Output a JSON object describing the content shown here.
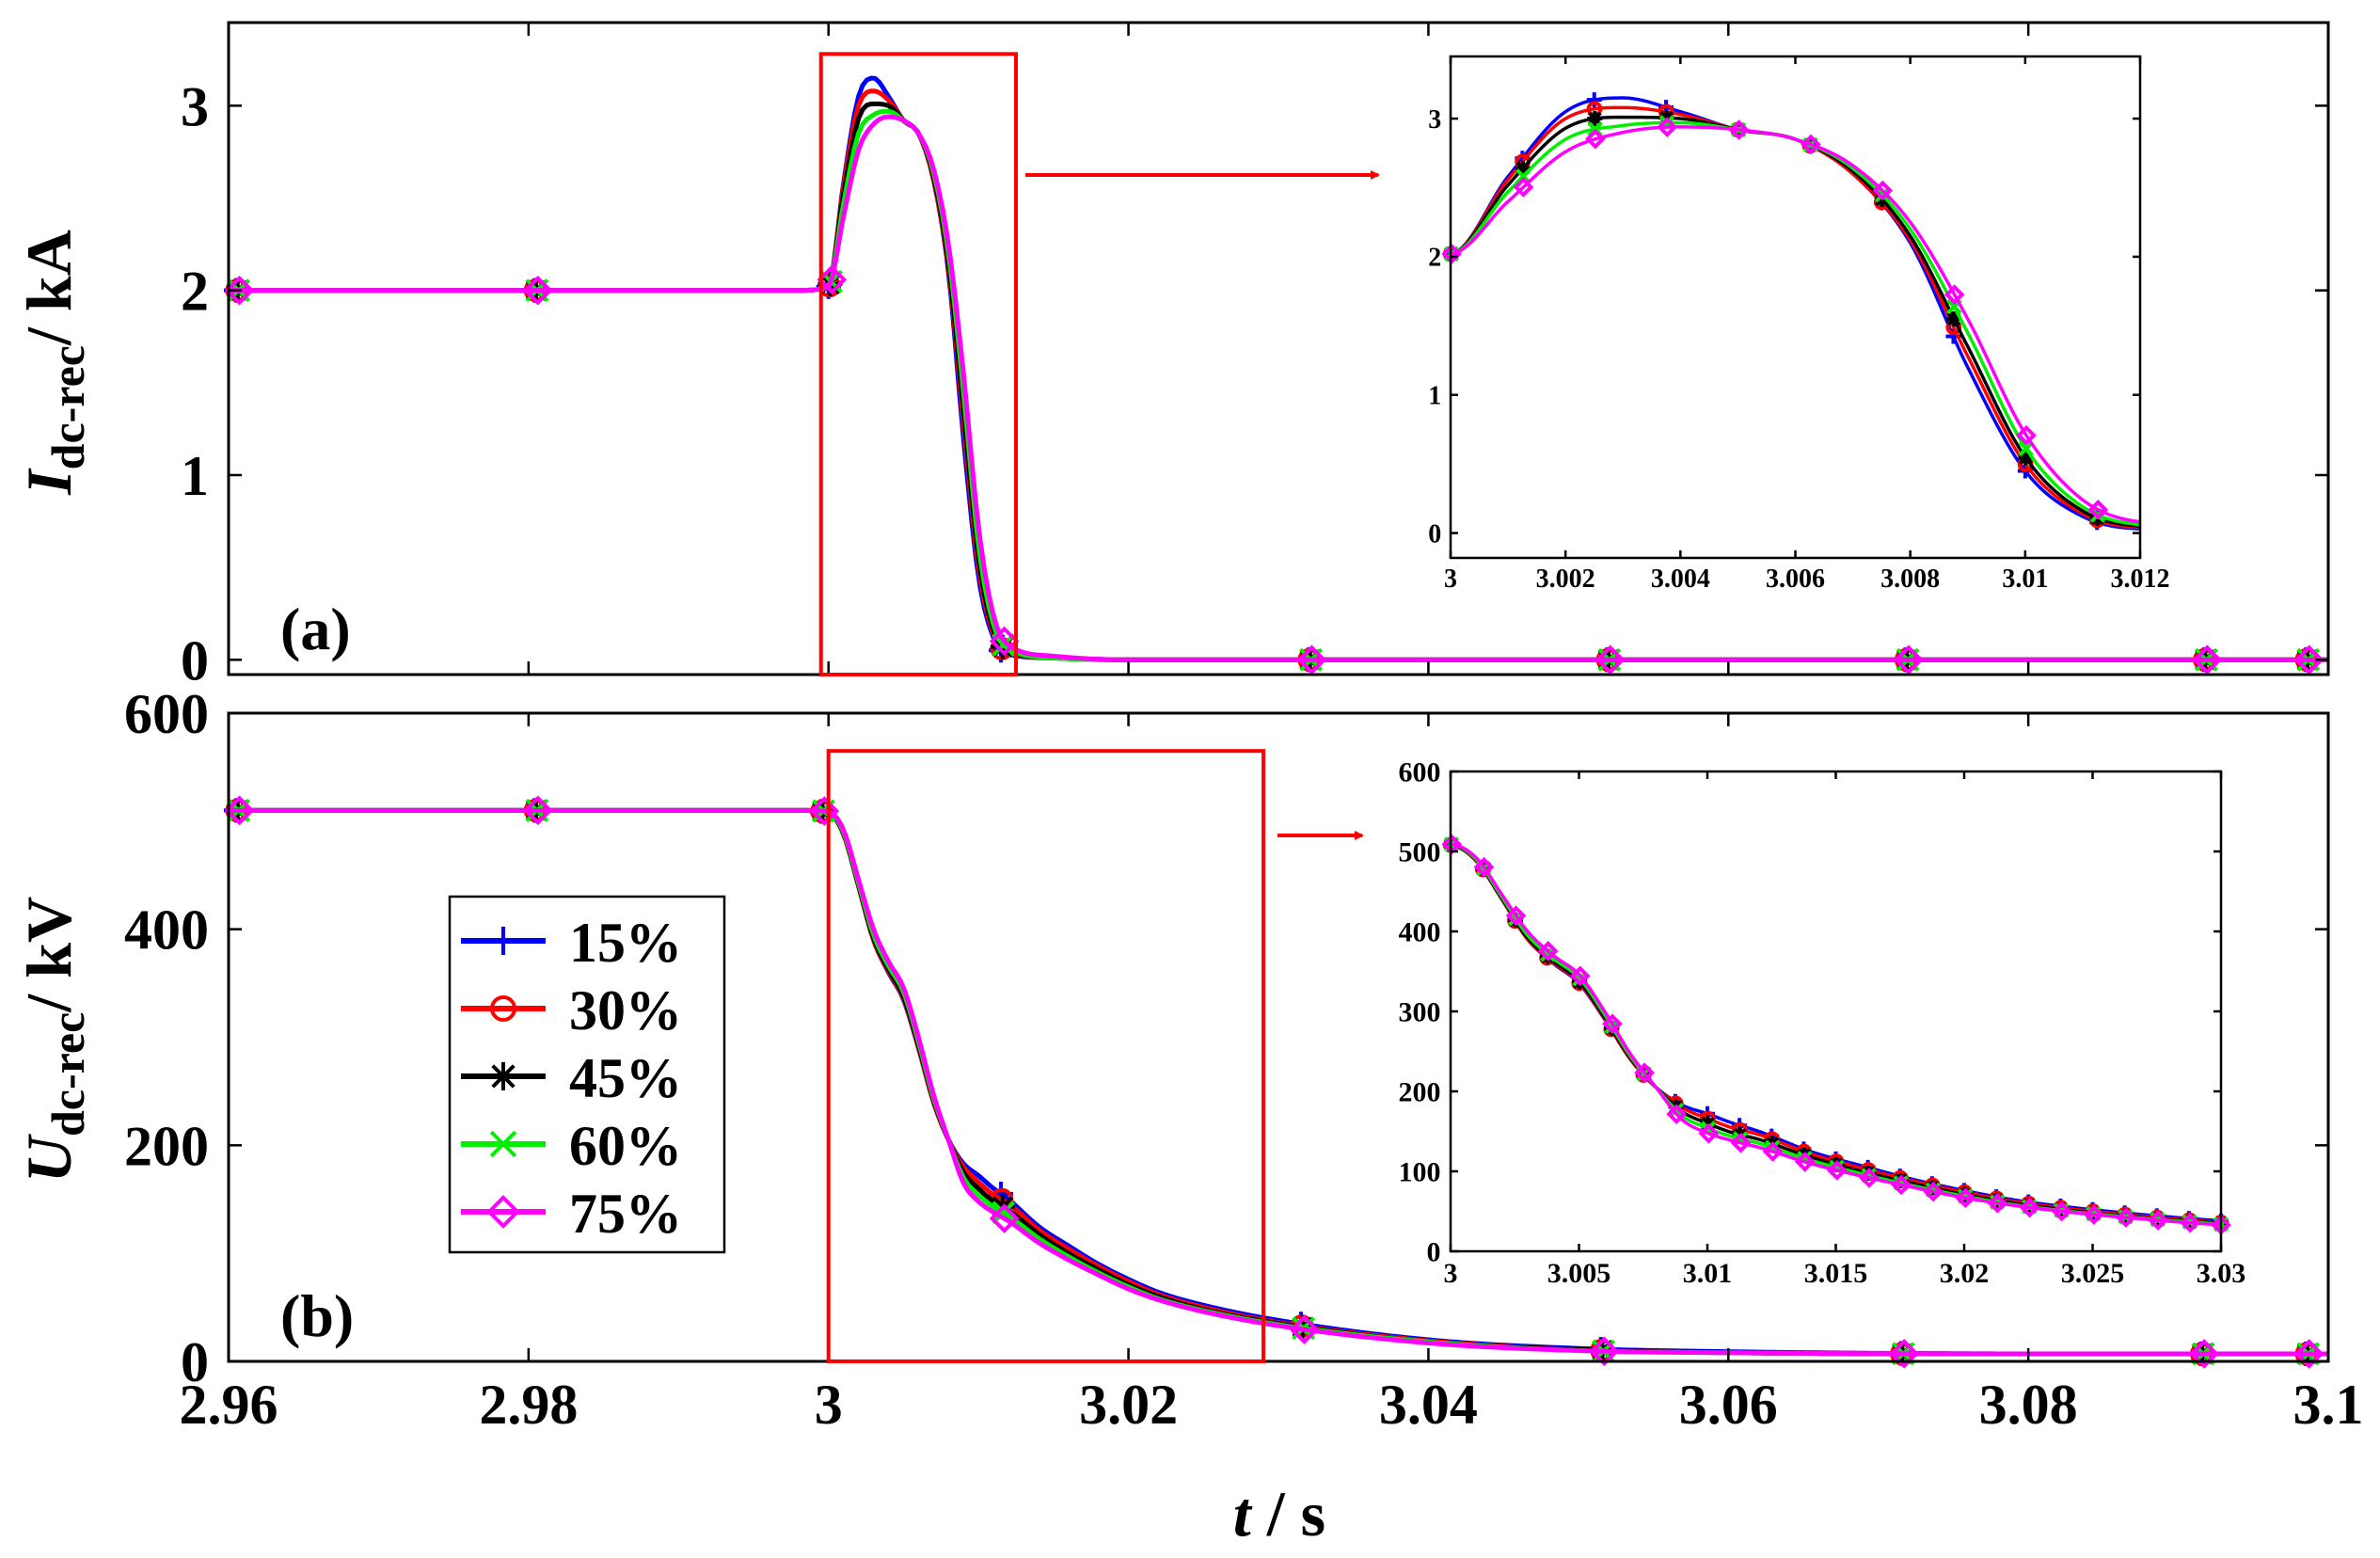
{
  "figure": {
    "xlabel_var": "t",
    "xlabel_unit": " / s"
  },
  "legend": {
    "entries": [
      {
        "label": "15%",
        "color": "#0000ff",
        "marker": "plus"
      },
      {
        "label": "30%",
        "color": "#ff0000",
        "marker": "circle"
      },
      {
        "label": "45%",
        "color": "#000000",
        "marker": "asterisk"
      },
      {
        "label": "60%",
        "color": "#00ee00",
        "marker": "cross"
      },
      {
        "label": "75%",
        "color": "#ff00ff",
        "marker": "diamond"
      }
    ]
  },
  "chart_data": [
    {
      "id": "a",
      "type": "line",
      "panel_label": "(a)",
      "ylabel_main": "I",
      "ylabel_sub": "dc-rec",
      "ylabel_unit": "/ kA",
      "xlabel": "t / s",
      "xlim": [
        2.96,
        3.1
      ],
      "ylim": [
        -0.08,
        3.45
      ],
      "xticks": [
        2.96,
        2.98,
        3,
        3.02,
        3.04,
        3.06,
        3.08,
        3.1
      ],
      "xtick_labels": [
        "2.96",
        "2.98",
        "3",
        "3.02",
        "3.04",
        "3.06",
        "3.08",
        "3.1"
      ],
      "yticks": [
        0,
        1,
        2,
        3
      ],
      "ytick_labels": [
        "0",
        "1",
        "2",
        "3"
      ],
      "highlight_box": {
        "x": [
          2.9995,
          3.0125
        ],
        "y": [
          -0.08,
          3.28
        ]
      },
      "series": [
        {
          "name": "15%",
          "x": [
            2.96,
            2.998,
            3.0,
            3.001,
            3.002,
            3.003,
            3.004,
            3.005,
            3.006,
            3.007,
            3.008,
            3.009,
            3.01,
            3.011,
            3.012,
            3.015,
            3.02,
            3.1
          ],
          "values": [
            2.0,
            2.0,
            2.02,
            2.58,
            3.05,
            3.15,
            3.05,
            2.92,
            2.85,
            2.6,
            2.1,
            1.2,
            0.45,
            0.12,
            0.03,
            0.01,
            0.0,
            0.0
          ]
        },
        {
          "name": "30%",
          "x": [
            2.96,
            2.998,
            3.0,
            3.001,
            3.002,
            3.003,
            3.004,
            3.005,
            3.006,
            3.007,
            3.008,
            3.009,
            3.01,
            3.011,
            3.012,
            3.015,
            3.02,
            3.1
          ],
          "values": [
            2.0,
            2.0,
            2.02,
            2.56,
            3.0,
            3.08,
            3.03,
            2.92,
            2.85,
            2.6,
            2.12,
            1.28,
            0.5,
            0.14,
            0.04,
            0.01,
            0.0,
            0.0
          ]
        },
        {
          "name": "45%",
          "x": [
            2.96,
            2.998,
            3.0,
            3.001,
            3.002,
            3.003,
            3.004,
            3.005,
            3.006,
            3.007,
            3.008,
            3.009,
            3.01,
            3.011,
            3.012,
            3.015,
            3.02,
            3.1
          ],
          "values": [
            2.0,
            2.0,
            2.02,
            2.52,
            2.93,
            3.01,
            3.0,
            2.92,
            2.85,
            2.62,
            2.15,
            1.35,
            0.55,
            0.16,
            0.05,
            0.01,
            0.0,
            0.0
          ]
        },
        {
          "name": "60%",
          "x": [
            2.96,
            2.998,
            3.0,
            3.001,
            3.002,
            3.003,
            3.004,
            3.005,
            3.006,
            3.007,
            3.008,
            3.009,
            3.01,
            3.011,
            3.012,
            3.015,
            3.02,
            3.1
          ],
          "values": [
            2.0,
            2.0,
            2.02,
            2.47,
            2.85,
            2.95,
            2.97,
            2.92,
            2.85,
            2.64,
            2.2,
            1.45,
            0.62,
            0.19,
            0.06,
            0.01,
            0.0,
            0.0
          ]
        },
        {
          "name": "75%",
          "x": [
            2.96,
            2.998,
            3.0,
            3.001,
            3.002,
            3.003,
            3.004,
            3.005,
            3.006,
            3.007,
            3.008,
            3.009,
            3.01,
            3.011,
            3.012,
            3.015,
            3.02,
            3.1
          ],
          "values": [
            2.0,
            2.0,
            2.02,
            2.4,
            2.76,
            2.9,
            2.94,
            2.92,
            2.85,
            2.66,
            2.25,
            1.55,
            0.72,
            0.24,
            0.08,
            0.02,
            0.0,
            0.0
          ]
        }
      ],
      "inset": {
        "xlim": [
          3.0,
          3.012
        ],
        "ylim": [
          -0.18,
          3.45
        ],
        "xticks": [
          3,
          3.002,
          3.004,
          3.006,
          3.008,
          3.01,
          3.012
        ],
        "xtick_labels": [
          "3",
          "3.002",
          "3.004",
          "3.006",
          "3.008",
          "3.01",
          "3.012"
        ],
        "yticks": [
          0,
          1,
          2,
          3
        ],
        "ytick_labels": [
          "0",
          "1",
          "2",
          "3"
        ]
      }
    },
    {
      "id": "b",
      "type": "line",
      "panel_label": "(b)",
      "ylabel_main": "U",
      "ylabel_sub": "dc-rec",
      "ylabel_unit": "/ kV",
      "xlabel": "t / s",
      "xlim": [
        2.96,
        3.1
      ],
      "ylim": [
        0,
        600
      ],
      "xticks": [
        2.96,
        2.98,
        3,
        3.02,
        3.04,
        3.06,
        3.08,
        3.1
      ],
      "xtick_labels": [
        "2.96",
        "2.98",
        "3",
        "3.02",
        "3.04",
        "3.06",
        "3.08",
        "3.1"
      ],
      "yticks": [
        0,
        200,
        400,
        600
      ],
      "ytick_labels": [
        "0",
        "200",
        "400",
        "600"
      ],
      "highlight_box": {
        "x": [
          3.0,
          3.029
        ],
        "y": [
          0,
          565
        ]
      },
      "series": [
        {
          "name": "15%",
          "x": [
            2.96,
            2.998,
            3.0,
            3.001,
            3.002,
            3.003,
            3.004,
            3.005,
            3.006,
            3.007,
            3.008,
            3.009,
            3.01,
            3.011,
            3.012,
            3.014,
            3.016,
            3.018,
            3.02,
            3.022,
            3.025,
            3.03,
            3.04,
            3.05,
            3.06,
            3.08,
            3.1
          ],
          "values": [
            510,
            510,
            508,
            488,
            440,
            390,
            360,
            335,
            290,
            240,
            205,
            183,
            172,
            160,
            150,
            125,
            107,
            90,
            76,
            64,
            52,
            38,
            20,
            12,
            9,
            7,
            7
          ]
        },
        {
          "name": "30%",
          "x": [
            2.96,
            2.998,
            3.0,
            3.001,
            3.002,
            3.003,
            3.004,
            3.005,
            3.006,
            3.007,
            3.008,
            3.009,
            3.01,
            3.011,
            3.012,
            3.014,
            3.016,
            3.018,
            3.02,
            3.022,
            3.025,
            3.03,
            3.04,
            3.05,
            3.06,
            3.08,
            3.1
          ],
          "values": [
            510,
            510,
            508,
            488,
            440,
            390,
            361,
            336,
            291,
            240,
            205,
            180,
            166,
            154,
            146,
            122,
            104,
            88,
            74,
            62,
            50,
            36,
            19,
            11,
            8,
            7,
            7
          ]
        },
        {
          "name": "45%",
          "x": [
            2.96,
            2.998,
            3.0,
            3.001,
            3.002,
            3.003,
            3.004,
            3.005,
            3.006,
            3.007,
            3.008,
            3.009,
            3.01,
            3.011,
            3.012,
            3.014,
            3.016,
            3.018,
            3.02,
            3.022,
            3.025,
            3.03,
            3.04,
            3.05,
            3.06,
            3.08,
            3.1
          ],
          "values": [
            510,
            510,
            508,
            489,
            441,
            392,
            363,
            338,
            293,
            242,
            205,
            175,
            160,
            148,
            140,
            118,
            100,
            85,
            71,
            60,
            48,
            35,
            18,
            11,
            8,
            7,
            7
          ]
        },
        {
          "name": "60%",
          "x": [
            2.96,
            2.998,
            3.0,
            3.001,
            3.002,
            3.003,
            3.004,
            3.005,
            3.006,
            3.007,
            3.008,
            3.009,
            3.01,
            3.011,
            3.012,
            3.014,
            3.016,
            3.018,
            3.02,
            3.022,
            3.025,
            3.03,
            3.04,
            3.05,
            3.06,
            3.08,
            3.1
          ],
          "values": [
            510,
            510,
            509,
            490,
            443,
            395,
            366,
            342,
            296,
            244,
            205,
            170,
            154,
            143,
            135,
            114,
            97,
            82,
            69,
            58,
            47,
            34,
            18,
            10,
            8,
            7,
            7
          ]
        },
        {
          "name": "75%",
          "x": [
            2.96,
            2.998,
            3.0,
            3.001,
            3.002,
            3.003,
            3.004,
            3.005,
            3.006,
            3.007,
            3.008,
            3.009,
            3.01,
            3.011,
            3.012,
            3.014,
            3.016,
            3.018,
            3.02,
            3.022,
            3.025,
            3.03,
            3.04,
            3.05,
            3.06,
            3.08,
            3.1
          ],
          "values": [
            510,
            510,
            509,
            492,
            446,
            400,
            370,
            346,
            300,
            247,
            205,
            165,
            148,
            138,
            130,
            110,
            94,
            80,
            67,
            57,
            46,
            33,
            17,
            10,
            8,
            7,
            7
          ]
        }
      ],
      "inset": {
        "xlim": [
          3.0,
          3.03
        ],
        "ylim": [
          0,
          600
        ],
        "xticks": [
          3,
          3.005,
          3.01,
          3.015,
          3.02,
          3.025,
          3.03
        ],
        "xtick_labels": [
          "3",
          "3.005",
          "3.01",
          "3.015",
          "3.02",
          "3.025",
          "3.03"
        ],
        "yticks": [
          0,
          100,
          200,
          300,
          400,
          500,
          600
        ],
        "ytick_labels": [
          "0",
          "100",
          "200",
          "300",
          "400",
          "500",
          "600"
        ]
      }
    }
  ]
}
